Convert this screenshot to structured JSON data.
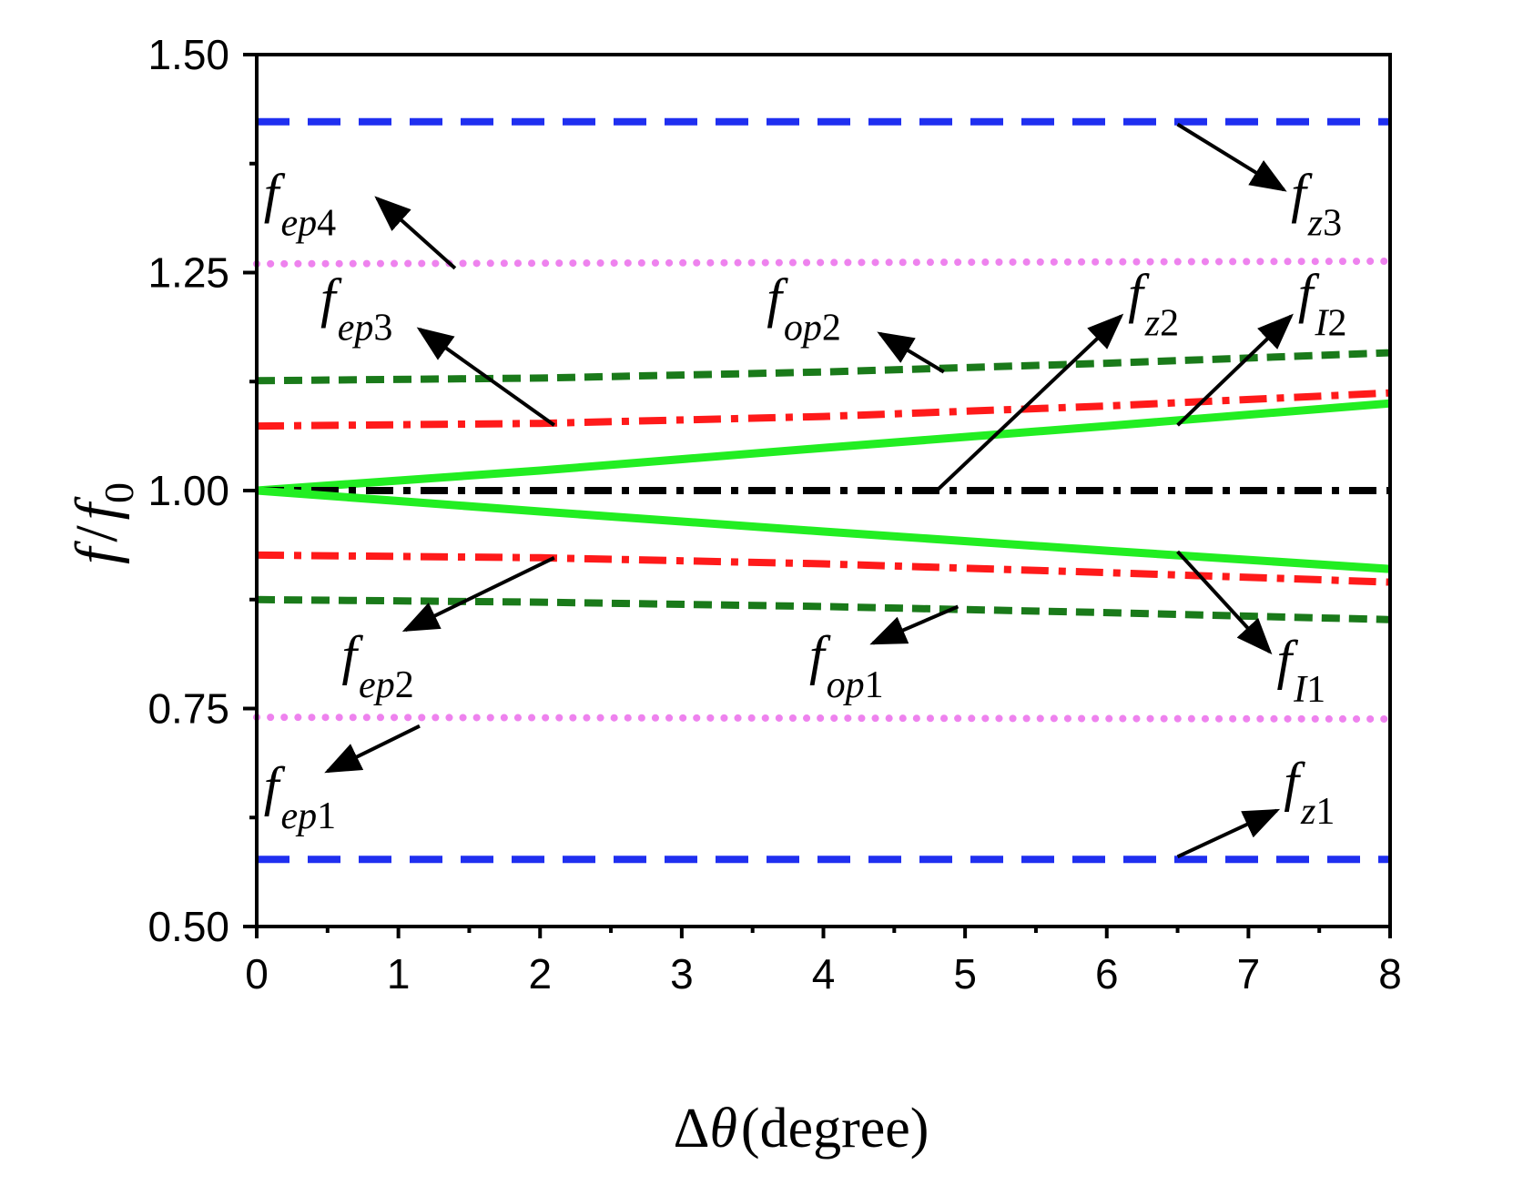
{
  "chart_data": {
    "type": "line",
    "title": "",
    "xlabel": {
      "prefix": "Δ",
      "symbol": "θ",
      "unit": "(degree)"
    },
    "ylabel": {
      "top": "f",
      "slash": "/",
      "bottom": "f",
      "sub": "0"
    },
    "xlim": [
      0,
      8
    ],
    "ylim": [
      0.5,
      1.5
    ],
    "xticks": [
      0,
      1,
      2,
      3,
      4,
      5,
      6,
      7,
      8
    ],
    "xtick_labels": [
      "0",
      "1",
      "2",
      "3",
      "4",
      "5",
      "6",
      "7",
      "8"
    ],
    "yticks": [
      0.5,
      0.75,
      1.0,
      1.25,
      1.5
    ],
    "ytick_labels": [
      "0.50",
      "0.75",
      "1.00",
      "1.25",
      "1.50"
    ],
    "grid": false,
    "series": [
      {
        "name": "f_z3",
        "color": "#1f2ff0",
        "style": "dash",
        "x": [
          0,
          8
        ],
        "y": [
          1.423,
          1.423
        ]
      },
      {
        "name": "f_ep4",
        "color": "#ee82ee",
        "style": "dot",
        "x": [
          0,
          8
        ],
        "y": [
          1.26,
          1.263
        ]
      },
      {
        "name": "f_op2",
        "color": "#1a7a1a",
        "style": "shortdash",
        "x": [
          0,
          2,
          4,
          6,
          8
        ],
        "y": [
          1.126,
          1.129,
          1.136,
          1.146,
          1.158
        ]
      },
      {
        "name": "f_ep3",
        "color": "#ff1a1a",
        "style": "dashdot",
        "x": [
          0,
          2,
          4,
          6,
          8
        ],
        "y": [
          1.074,
          1.077,
          1.085,
          1.097,
          1.112
        ]
      },
      {
        "name": "f_I2",
        "color": "#22ee22",
        "style": "solid",
        "x": [
          0,
          2,
          4,
          6,
          8
        ],
        "y": [
          1.0,
          1.023,
          1.049,
          1.074,
          1.1
        ]
      },
      {
        "name": "f_z2",
        "color": "#000000",
        "style": "dashdot",
        "x": [
          0,
          8
        ],
        "y": [
          1.0,
          1.0
        ]
      },
      {
        "name": "f_I1",
        "color": "#22ee22",
        "style": "solid",
        "x": [
          0,
          2,
          4,
          6,
          8
        ],
        "y": [
          1.0,
          0.976,
          0.953,
          0.931,
          0.91
        ]
      },
      {
        "name": "f_ep2",
        "color": "#ff1a1a",
        "style": "dashdot",
        "x": [
          0,
          2,
          4,
          6,
          8
        ],
        "y": [
          0.926,
          0.923,
          0.916,
          0.906,
          0.895
        ]
      },
      {
        "name": "f_op1",
        "color": "#1a7a1a",
        "style": "shortdash",
        "x": [
          0,
          2,
          4,
          6,
          8
        ],
        "y": [
          0.875,
          0.872,
          0.867,
          0.86,
          0.852
        ]
      },
      {
        "name": "f_ep1",
        "color": "#ee82ee",
        "style": "dot",
        "x": [
          0,
          8
        ],
        "y": [
          0.74,
          0.738
        ]
      },
      {
        "name": "f_z1",
        "color": "#1f2ff0",
        "style": "dash",
        "x": [
          0,
          8
        ],
        "y": [
          0.577,
          0.577
        ]
      }
    ],
    "annotations": [
      {
        "id": "ep4",
        "main": "f",
        "sub": "ep",
        "num": "4",
        "label_x": 0.05,
        "label_y": 1.32,
        "arrow_from": [
          1.4,
          1.255
        ],
        "arrow_to": [
          0.85,
          1.335
        ]
      },
      {
        "id": "z3",
        "main": "f",
        "sub": "z",
        "num": "3",
        "label_x": 7.3,
        "label_y": 1.32,
        "arrow_from": [
          6.5,
          1.42
        ],
        "arrow_to": [
          7.25,
          1.345
        ]
      },
      {
        "id": "ep3",
        "main": "f",
        "sub": "ep",
        "num": "3",
        "label_x": 0.45,
        "label_y": 1.2,
        "arrow_from": [
          2.1,
          1.075
        ],
        "arrow_to": [
          1.15,
          1.185
        ]
      },
      {
        "id": "op2",
        "main": "f",
        "sub": "op",
        "num": "2",
        "label_x": 3.6,
        "label_y": 1.2,
        "arrow_from": [
          4.85,
          1.136
        ],
        "arrow_to": [
          4.4,
          1.18
        ]
      },
      {
        "id": "z2",
        "main": "f",
        "sub": "z",
        "num": "2",
        "label_x": 6.15,
        "label_y": 1.205,
        "arrow_from": [
          4.8,
          1.0
        ],
        "arrow_to": [
          6.1,
          1.2
        ]
      },
      {
        "id": "I2",
        "main": "f",
        "sub": "I",
        "num": "2",
        "label_x": 7.35,
        "label_y": 1.205,
        "arrow_from": [
          6.5,
          1.075
        ],
        "arrow_to": [
          7.3,
          1.2
        ]
      },
      {
        "id": "ep2",
        "main": "f",
        "sub": "ep",
        "num": "2",
        "label_x": 0.6,
        "label_y": 0.79,
        "arrow_from": [
          2.1,
          0.923
        ],
        "arrow_to": [
          1.05,
          0.84
        ]
      },
      {
        "id": "op1",
        "main": "f",
        "sub": "op",
        "num": "1",
        "label_x": 3.9,
        "label_y": 0.79,
        "arrow_from": [
          4.95,
          0.867
        ],
        "arrow_to": [
          4.35,
          0.825
        ]
      },
      {
        "id": "I1",
        "main": "f",
        "sub": "I",
        "num": "1",
        "label_x": 7.2,
        "label_y": 0.785,
        "arrow_from": [
          6.5,
          0.93
        ],
        "arrow_to": [
          7.15,
          0.815
        ]
      },
      {
        "id": "ep1",
        "main": "f",
        "sub": "ep",
        "num": "1",
        "label_x": 0.05,
        "label_y": 0.64,
        "arrow_from": [
          1.15,
          0.73
        ],
        "arrow_to": [
          0.5,
          0.678
        ]
      },
      {
        "id": "z1",
        "main": "f",
        "sub": "z",
        "num": "1",
        "label_x": 7.25,
        "label_y": 0.645,
        "arrow_from": [
          6.5,
          0.58
        ],
        "arrow_to": [
          7.2,
          0.633
        ]
      }
    ]
  }
}
